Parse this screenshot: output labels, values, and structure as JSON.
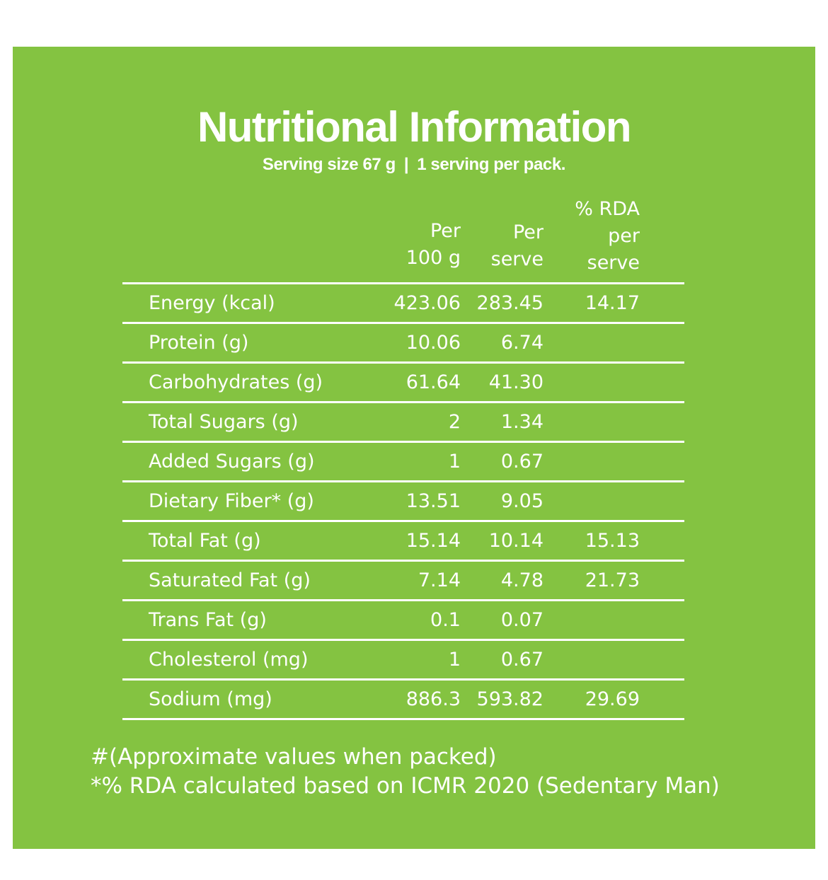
{
  "title": "Nutritional Information",
  "serving": {
    "size": "Serving size 67 g",
    "separator": "|",
    "per_pack": "1 serving per pack."
  },
  "headers": {
    "per100": [
      "Per",
      "100 g"
    ],
    "perserve": [
      "Per",
      "serve"
    ],
    "rda": [
      "% RDA",
      "per",
      "serve"
    ]
  },
  "rows": [
    {
      "name": "Energy (kcal)",
      "per100": "423.06",
      "perserve": "283.45",
      "rda": "14.17"
    },
    {
      "name": "Protein (g)",
      "per100": "10.06",
      "perserve": "6.74",
      "rda": ""
    },
    {
      "name": "Carbohydrates (g)",
      "per100": "61.64",
      "perserve": "41.30",
      "rda": ""
    },
    {
      "name": "Total Sugars (g)",
      "per100": "2",
      "perserve": "1.34",
      "rda": ""
    },
    {
      "name": "Added Sugars (g)",
      "per100": "1",
      "perserve": "0.67",
      "rda": ""
    },
    {
      "name": "Dietary Fiber* (g)",
      "per100": "13.51",
      "perserve": "9.05",
      "rda": ""
    },
    {
      "name": "Total Fat (g)",
      "per100": "15.14",
      "perserve": "10.14",
      "rda": "15.13"
    },
    {
      "name": "Saturated Fat (g)",
      "per100": "7.14",
      "perserve": "4.78",
      "rda": "21.73"
    },
    {
      "name": "Trans Fat (g)",
      "per100": "0.1",
      "perserve": "0.07",
      "rda": ""
    },
    {
      "name": "Cholesterol (mg)",
      "per100": "1",
      "perserve": "0.67",
      "rda": ""
    },
    {
      "name": "Sodium (mg)",
      "per100": "886.3",
      "perserve": "593.82",
      "rda": "29.69"
    }
  ],
  "footnotes": [
    "#(Approximate values when packed)",
    "*% RDA calculated based on ICMR 2020 (Sedentary Man)"
  ],
  "colors": {
    "panel": "#84c341",
    "text": "#ffffff"
  }
}
